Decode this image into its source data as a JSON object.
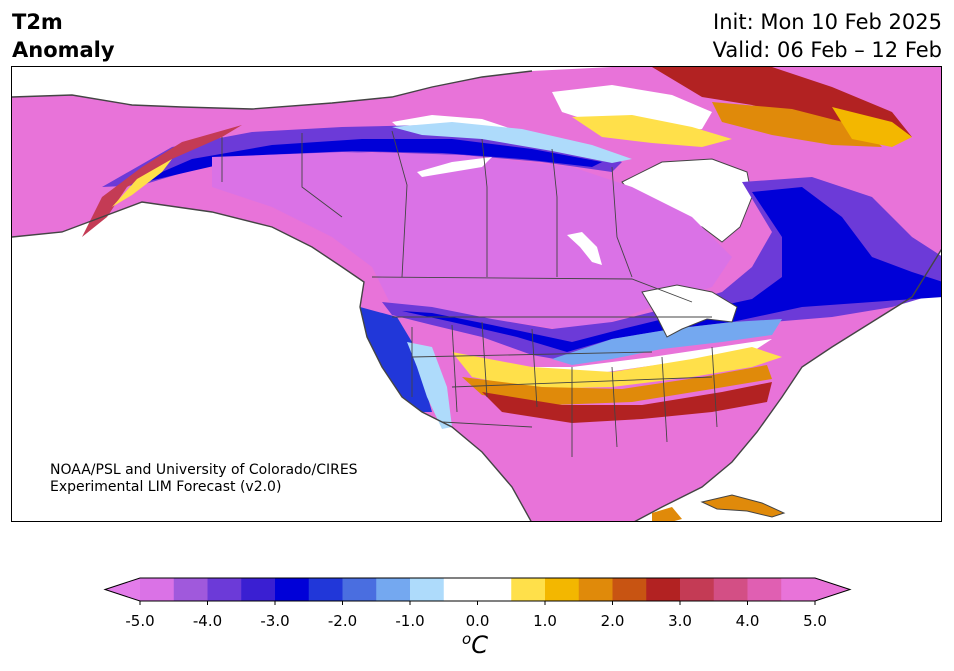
{
  "header": {
    "variable": "T2m",
    "subtitle": "Anomaly",
    "init": "Init: Mon 10 Feb 2025",
    "valid": "Valid: 06 Feb – 12 Feb"
  },
  "credit": {
    "line1": "NOAA/PSL and University of Colorado/CIRES",
    "line2": "Experimental LIM Forecast (v2.0)"
  },
  "colorbar": {
    "unit": "oC",
    "ticks": [
      "-5.0",
      "-4.0",
      "-3.0",
      "-2.0",
      "-1.0",
      "0.0",
      "1.0",
      "2.0",
      "3.0",
      "4.0",
      "5.0"
    ],
    "levels": [
      -5.0,
      -4.5,
      -4.0,
      -3.5,
      -3.0,
      -2.5,
      -2.0,
      -1.5,
      -1.0,
      -0.5,
      0.5,
      1.0,
      1.5,
      2.0,
      2.5,
      3.0,
      3.5,
      4.0,
      4.5,
      5.0
    ],
    "colors": [
      "#da72e6",
      "#a059dc",
      "#6c3ad8",
      "#3a1fd2",
      "#0000d8",
      "#2137d9",
      "#4a6ee0",
      "#74a8f0",
      "#aedbfb",
      "#ffffff",
      "#ffe04a",
      "#f3b700",
      "#e08a0a",
      "#c85412",
      "#b22222",
      "#c43b55",
      "#d34f85",
      "#e05fb2",
      "#e873d9"
    ],
    "under_color": "#e37cea",
    "over_color": "#e873d9"
  },
  "map": {
    "projection": "Lambert conformal North America",
    "field": "2 m temperature anomaly",
    "palette": {
      "warm_extreme": "#e873d9",
      "cold_extreme": "#da72e6",
      "cold_core": "#0000d8",
      "warm_core": "#b22222",
      "neutral": "#ffffff"
    }
  }
}
